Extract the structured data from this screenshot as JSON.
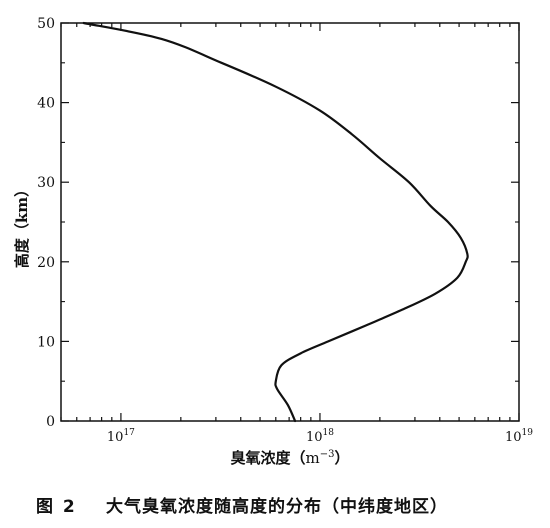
{
  "chart_data": {
    "type": "line",
    "x_scale": "log",
    "xlim": [
      50000000000000000,
      10000000000000000000
    ],
    "ylim": [
      0,
      50
    ],
    "x_ticks": [
      {
        "value": 100000000000000000,
        "base": "10",
        "exp": "17"
      },
      {
        "value": 1000000000000000000,
        "base": "10",
        "exp": "18"
      },
      {
        "value": 10000000000000000000,
        "base": "10",
        "exp": "19"
      }
    ],
    "y_ticks": [
      "0",
      "10",
      "20",
      "30",
      "40",
      "50"
    ],
    "xlabel": {
      "text": "臭氧浓度（",
      "unit": "m",
      "unit_exp": "−3",
      "close": "）"
    },
    "ylabel": "高度（km）",
    "grid": false,
    "series": [
      {
        "color": "#111111",
        "points": [
          {
            "x": 750000000000000000,
            "y": 0
          },
          {
            "x": 690000000000000000,
            "y": 2
          },
          {
            "x": 610000000000000000,
            "y": 4
          },
          {
            "x": 600000000000000000,
            "y": 5
          },
          {
            "x": 640000000000000000,
            "y": 7
          },
          {
            "x": 800000000000000000,
            "y": 8.5
          },
          {
            "x": 1100000000000000000,
            "y": 10
          },
          {
            "x": 1700000000000000000,
            "y": 12
          },
          {
            "x": 2600000000000000000,
            "y": 14
          },
          {
            "x": 3800000000000000000,
            "y": 16
          },
          {
            "x": 4900000000000000000,
            "y": 18
          },
          {
            "x": 5400000000000000000,
            "y": 20
          },
          {
            "x": 5500000000000000000,
            "y": 21
          },
          {
            "x": 5100000000000000000,
            "y": 23
          },
          {
            "x": 4400000000000000000,
            "y": 25
          },
          {
            "x": 3600000000000000000,
            "y": 27
          },
          {
            "x": 2800000000000000000,
            "y": 30
          },
          {
            "x": 2000000000000000000,
            "y": 33
          },
          {
            "x": 1450000000000000000,
            "y": 36
          },
          {
            "x": 1000000000000000000,
            "y": 39
          },
          {
            "x": 600000000000000000,
            "y": 42
          },
          {
            "x": 320000000000000000,
            "y": 45
          },
          {
            "x": 160000000000000000,
            "y": 48
          },
          {
            "x": 65000000000000000,
            "y": 50
          }
        ]
      }
    ]
  },
  "caption": {
    "number": "图 2",
    "title": "大气臭氧浓度随高度的分布（中纬度地区）"
  }
}
